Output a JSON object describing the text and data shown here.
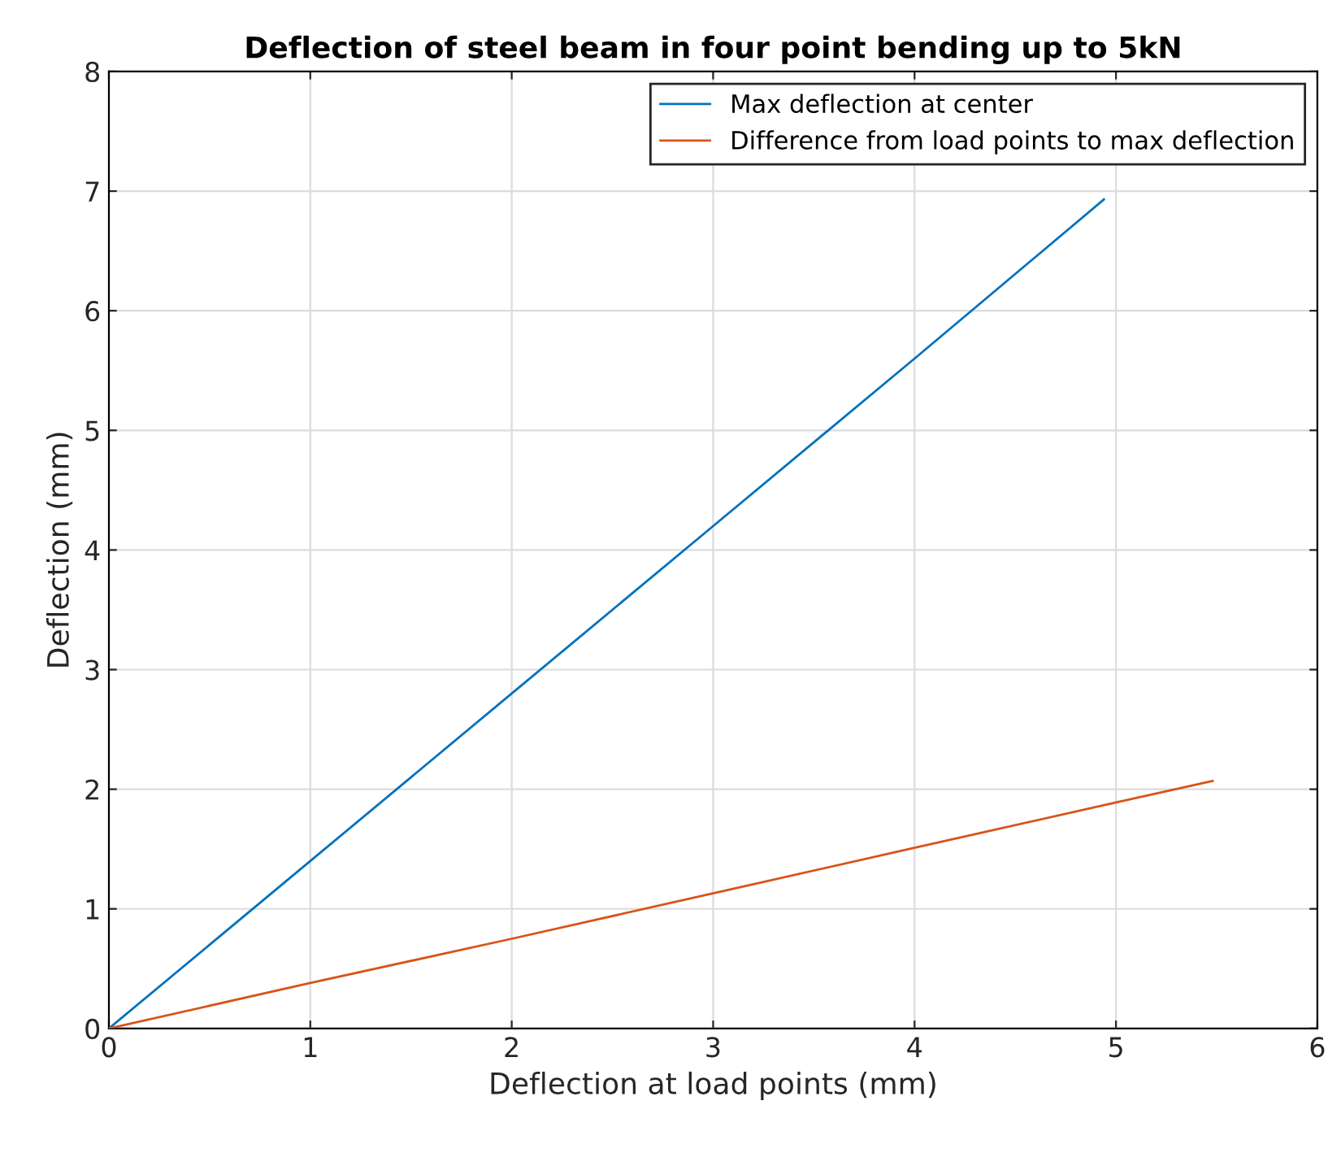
{
  "chart_data": {
    "type": "line",
    "title": "Deflection of steel beam in four point bending up to 5kN",
    "xlabel": "Deflection at load points (mm)",
    "ylabel": "Deflection (mm)",
    "series": [
      {
        "name": "Max deflection at center",
        "color": "#0072bd",
        "x": [
          0,
          1,
          2,
          3,
          4,
          4.94
        ],
        "values": [
          0,
          1.4,
          2.8,
          4.2,
          5.6,
          6.93
        ]
      },
      {
        "name": "Difference from load points to max deflection",
        "color": "#d95319",
        "x": [
          0,
          1,
          2,
          3,
          4,
          5,
          5.48
        ],
        "values": [
          0,
          0.38,
          0.75,
          1.13,
          1.51,
          1.89,
          2.07
        ]
      }
    ],
    "xlim": [
      0,
      6
    ],
    "ylim": [
      0,
      8
    ],
    "xticks": [
      0,
      1,
      2,
      3,
      4,
      5,
      6
    ],
    "yticks": [
      0,
      1,
      2,
      3,
      4,
      5,
      6,
      7,
      8
    ],
    "grid": true,
    "legend": "top right",
    "marker": "none",
    "line_style": "solid"
  }
}
